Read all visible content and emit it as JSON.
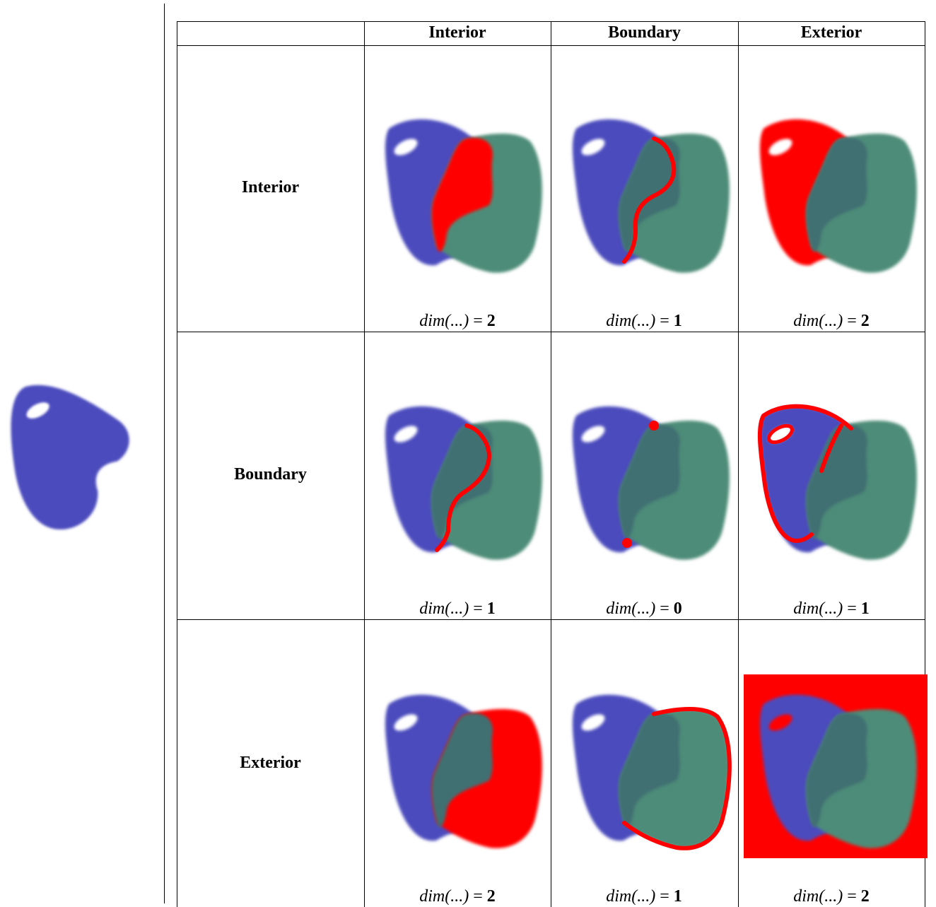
{
  "columns": [
    "Interior",
    "Boundary",
    "Exterior"
  ],
  "rows": [
    {
      "label": "Interior",
      "dims": [
        {
          "prefix": "dim(...)",
          "value": "2"
        },
        {
          "prefix": "dim(...)",
          "value": "1"
        },
        {
          "prefix": "dim(...)",
          "value": "2"
        }
      ]
    },
    {
      "label": "Boundary",
      "dims": [
        {
          "prefix": "dim(...)",
          "value": "1"
        },
        {
          "prefix": "dim(...)",
          "value": "0"
        },
        {
          "prefix": "dim(...)",
          "value": "1"
        }
      ]
    },
    {
      "label": "Exterior",
      "dims": [
        {
          "prefix": "dim(...)",
          "value": "2"
        },
        {
          "prefix": "dim(...)",
          "value": "1"
        },
        {
          "prefix": "dim(...)",
          "value": "2"
        }
      ]
    }
  ],
  "colors": {
    "polygon_a": "#4b4bbd",
    "polygon_b": "#4e8c78",
    "overlap": "#3f7072",
    "highlight": "#ff0000"
  }
}
